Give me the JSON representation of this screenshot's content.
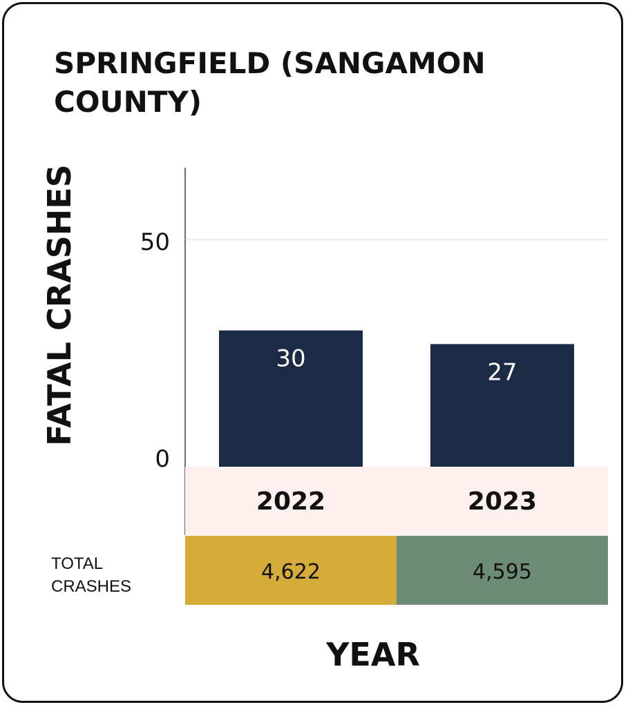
{
  "chart_data": {
    "type": "bar",
    "title": "SPRINGFIELD (SANGAMON COUNTY)",
    "xlabel": "YEAR",
    "ylabel": "FATAL CRASHES",
    "categories": [
      "2022",
      "2023"
    ],
    "values": [
      30,
      27
    ],
    "data_labels": [
      "30",
      "27"
    ],
    "yticks": [
      "0",
      "50"
    ],
    "ylim": [
      0,
      60
    ],
    "grid": true,
    "bar_color": "#1b2a45",
    "category_band_color": "#fdf0ef",
    "totals": {
      "label_line1": "TOTAL",
      "label_line2": "CRASHES",
      "values": [
        "4,622",
        "4,595"
      ],
      "colors": [
        "#d5ac39",
        "#6e8b78"
      ]
    }
  }
}
